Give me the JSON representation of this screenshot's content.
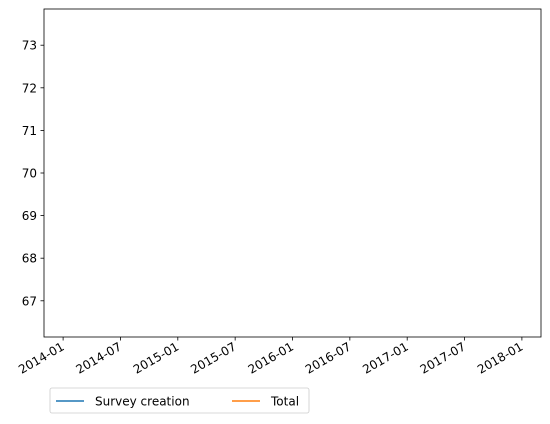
{
  "chart_data": {
    "type": "line",
    "title": "",
    "xlabel": "",
    "ylabel": "",
    "x_axis_type": "date",
    "x_ticks": [
      "2014-01",
      "2014-07",
      "2015-01",
      "2015-07",
      "2016-01",
      "2016-07",
      "2017-01",
      "2017-07",
      "2018-01"
    ],
    "y_ticks": [
      67,
      68,
      69,
      70,
      71,
      72,
      73
    ],
    "ylim": [
      66.15,
      73.85
    ],
    "xlim": [
      "2013-11",
      "2018-03"
    ],
    "grid": false,
    "legend_position": "bottom-left, outside plot",
    "legend_columns": 2,
    "series": [
      {
        "name": "Survey creation",
        "color": "#1f77b4",
        "x": [],
        "y": []
      },
      {
        "name": "Total",
        "color": "#ff7f0e",
        "x": [],
        "y": []
      }
    ]
  }
}
